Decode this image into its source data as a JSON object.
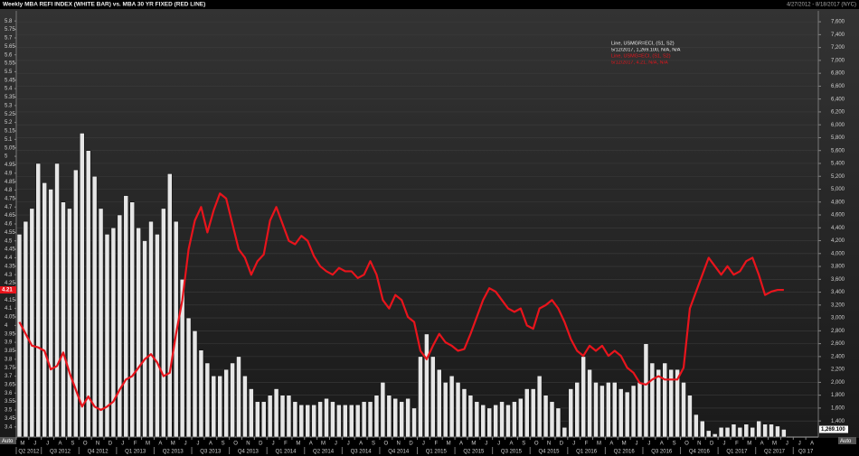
{
  "chart_data": {
    "type": "bar-line",
    "title": "Weekly MBA REFI INDEX (WHITE BAR) vs. MBA 30 YR FIXED (RED LINE)",
    "date_range": "4/27/2012 - 8/18/2017 (NYC)",
    "scale_mode": "Auto",
    "grid": true,
    "categories": [
      "M",
      null,
      "J",
      null,
      "J",
      null,
      "A",
      null,
      "S",
      null,
      "O",
      null,
      "N",
      null,
      "D",
      null,
      "J",
      null,
      "F",
      null,
      "M",
      null,
      "A",
      null,
      "M",
      null,
      "J",
      null,
      "J",
      null,
      "A",
      null,
      "S",
      null,
      "O",
      null,
      "N",
      null,
      "D",
      null,
      "J",
      null,
      "F",
      null,
      "M",
      null,
      "A",
      null,
      "M",
      null,
      "J",
      null,
      "J",
      null,
      "A",
      null,
      "S",
      null,
      "O",
      null,
      "N",
      null,
      "D",
      null,
      "J",
      null,
      "F",
      null,
      "M",
      null,
      "A",
      null,
      "M",
      null,
      "J",
      null,
      "J",
      null,
      "A",
      null,
      "S",
      null,
      "O",
      null,
      "N",
      null,
      "D",
      null,
      "J",
      null,
      "F",
      null,
      "M",
      null,
      "A",
      null,
      "M",
      null,
      "J",
      null,
      "J",
      null,
      "A",
      null,
      "S",
      null,
      "O",
      null,
      "N",
      null,
      "D",
      null,
      "J",
      null,
      "F",
      null,
      "M",
      null,
      "A",
      null,
      "M",
      null,
      "J",
      null,
      "J",
      null,
      "A",
      null
    ],
    "quarters": [
      "Q2 2012",
      "Q3 2012",
      "Q4 2012",
      "Q1 2013",
      "Q2 2013",
      "Q3 2013",
      "Q4 2013",
      "Q1 2014",
      "Q2 2014",
      "Q3 2014",
      "Q4 2014",
      "Q1 2015",
      "Q2 2015",
      "Q3 2015",
      "Q4 2015",
      "Q1 2016",
      "Q2 2016",
      "Q3 2016",
      "Q4 2016",
      "Q1 2017",
      "Q2 2017",
      "Q3 17"
    ],
    "ylim": [
      3.34,
      5.86
    ],
    "yticks": [
      3.4,
      3.45,
      3.5,
      3.55,
      3.6,
      3.65,
      3.7,
      3.75,
      3.8,
      3.85,
      3.9,
      3.95,
      4,
      4.05,
      4.1,
      4.15,
      4.2,
      4.25,
      4.3,
      4.35,
      4.4,
      4.45,
      4.5,
      4.55,
      4.6,
      4.65,
      4.7,
      4.75,
      4.8,
      4.85,
      4.9,
      4.95,
      5,
      5.05,
      5.1,
      5.15,
      5.2,
      5.25,
      5.3,
      5.35,
      5.4,
      5.45,
      5.5,
      5.55,
      5.6,
      5.65,
      5.7,
      5.75,
      5.8
    ],
    "y2lim": [
      1150,
      7770
    ],
    "y2ticks": [
      {
        "value": 1400,
        "label": "1,400"
      },
      {
        "value": 1600,
        "label": "1,600"
      },
      {
        "value": 1800,
        "label": "1,800"
      },
      {
        "value": 2000,
        "label": "2,000"
      },
      {
        "value": 2200,
        "label": "2,200"
      },
      {
        "value": 2400,
        "label": "2,400"
      },
      {
        "value": 2600,
        "label": "2,600"
      },
      {
        "value": 2800,
        "label": "2,800"
      },
      {
        "value": 3000,
        "label": "3,000"
      },
      {
        "value": 3200,
        "label": "3,200"
      },
      {
        "value": 3400,
        "label": "3,400"
      },
      {
        "value": 3600,
        "label": "3,600"
      },
      {
        "value": 3800,
        "label": "3,800"
      },
      {
        "value": 4000,
        "label": "4,000"
      },
      {
        "value": 4200,
        "label": "4,200"
      },
      {
        "value": 4400,
        "label": "4,400"
      },
      {
        "value": 4600,
        "label": "4,600"
      },
      {
        "value": 4800,
        "label": "4,800"
      },
      {
        "value": 5000,
        "label": "5,000"
      },
      {
        "value": 5200,
        "label": "5,200"
      },
      {
        "value": 5400,
        "label": "5,400"
      },
      {
        "value": 5600,
        "label": "5,600"
      },
      {
        "value": 5800,
        "label": "5,800"
      },
      {
        "value": 6000,
        "label": "6,000"
      },
      {
        "value": 6200,
        "label": "6,200"
      },
      {
        "value": 6400,
        "label": "6,400"
      },
      {
        "value": 6600,
        "label": "6,600"
      },
      {
        "value": 6800,
        "label": "6,800"
      },
      {
        "value": 7000,
        "label": "7,000"
      },
      {
        "value": 7200,
        "label": "7,200"
      },
      {
        "value": 7400,
        "label": "7,400"
      },
      {
        "value": 7600,
        "label": "7,600"
      }
    ],
    "series": [
      {
        "name": "Line, USMGR=ECI, (S1, S2)",
        "detail": "5/12/2017, 1,269.100, N/A, N/A",
        "last_value_label": "1,269.100",
        "color": "#e6e6e6",
        "axis": "y2",
        "values": [
          4300,
          4500,
          4700,
          5400,
          5100,
          5000,
          5400,
          4800,
          4700,
          5300,
          5870,
          5600,
          5200,
          4700,
          4300,
          4400,
          4600,
          4900,
          4800,
          4400,
          4200,
          4500,
          4300,
          4700,
          5240,
          4500,
          3600,
          3000,
          2800,
          2500,
          2300,
          2100,
          2100,
          2200,
          2300,
          2400,
          2100,
          1900,
          1700,
          1700,
          1800,
          1900,
          1800,
          1800,
          1700,
          1650,
          1650,
          1650,
          1700,
          1750,
          1700,
          1650,
          1650,
          1650,
          1650,
          1700,
          1700,
          1800,
          2000,
          1800,
          1750,
          1700,
          1750,
          1600,
          2400,
          2750,
          2400,
          2200,
          2000,
          2100,
          2000,
          1900,
          1800,
          1700,
          1650,
          1600,
          1650,
          1700,
          1650,
          1700,
          1750,
          1900,
          1900,
          2100,
          1800,
          1700,
          1600,
          1300,
          1900,
          2000,
          2400,
          2200,
          2000,
          1950,
          2000,
          2000,
          1900,
          1850,
          1950,
          2000,
          2600,
          2300,
          2200,
          2300,
          2200,
          2200,
          2000,
          1800,
          1500,
          1400,
          1250,
          1200,
          1300,
          1300,
          1350,
          1300,
          1350,
          1300,
          1400,
          1350,
          1350,
          1320,
          1269.1,
          null,
          null,
          null,
          null,
          null
        ]
      },
      {
        "name": "Line, USMG=ECI, (S1, S2)",
        "detail": "5/12/2017, 4.21, N/A, N/A",
        "last_value_label": "4.21",
        "color": "#e8141c",
        "axis": "y",
        "values": [
          4.02,
          3.95,
          3.88,
          3.87,
          3.85,
          3.74,
          3.76,
          3.84,
          3.72,
          3.62,
          3.52,
          3.58,
          3.52,
          3.5,
          3.52,
          3.55,
          3.62,
          3.68,
          3.7,
          3.75,
          3.8,
          3.83,
          3.78,
          3.7,
          3.72,
          3.95,
          4.15,
          4.45,
          4.62,
          4.7,
          4.55,
          4.68,
          4.78,
          4.75,
          4.6,
          4.45,
          4.4,
          4.3,
          4.38,
          4.42,
          4.62,
          4.7,
          4.6,
          4.5,
          4.48,
          4.53,
          4.5,
          4.41,
          4.35,
          4.32,
          4.3,
          4.34,
          4.32,
          4.32,
          4.28,
          4.3,
          4.38,
          4.3,
          4.15,
          4.1,
          4.18,
          4.15,
          4.05,
          4.02,
          3.85,
          3.8,
          3.88,
          3.95,
          3.9,
          3.88,
          3.85,
          3.86,
          3.95,
          4.05,
          4.15,
          4.22,
          4.2,
          4.15,
          4.1,
          4.08,
          4.1,
          4,
          3.98,
          4.1,
          4.12,
          4.15,
          4.1,
          4.02,
          3.92,
          3.85,
          3.82,
          3.88,
          3.85,
          3.88,
          3.82,
          3.85,
          3.82,
          3.75,
          3.72,
          3.66,
          3.65,
          3.68,
          3.7,
          3.68,
          3.68,
          3.68,
          3.75,
          4.1,
          4.2,
          4.3,
          4.4,
          4.35,
          4.3,
          4.35,
          4.3,
          4.32,
          4.38,
          4.4,
          4.3,
          4.18,
          4.2,
          4.21,
          4.21,
          null,
          null,
          null,
          null,
          null
        ]
      }
    ]
  }
}
